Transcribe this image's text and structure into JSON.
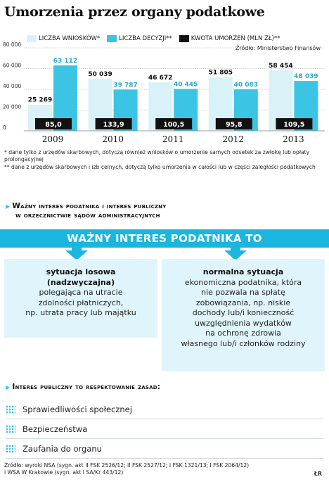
{
  "title": "Umorzenia przez organy podatkowe",
  "legend": [
    {
      "label": "LICZBA WNIOSKÓW*",
      "color": "#d9f2f8"
    },
    {
      "label": "LICZBA DECYZJI**",
      "color": "#3cc4e4"
    },
    {
      "label": "KWOTA UMORZEŃ (MLN ZŁ)**",
      "color": "#111111"
    }
  ],
  "source_top": "Źródło: Ministerstwo Finansów",
  "chart_data": {
    "type": "bar",
    "categories": [
      "2009",
      "2010",
      "2011",
      "2012",
      "2013"
    ],
    "series": [
      {
        "name": "LICZBA WNIOSKÓW*",
        "values": [
          25269,
          50039,
          46672,
          51805,
          58454
        ],
        "labels": [
          "25 269",
          "50 039",
          "46 672",
          "51 805",
          "58 454"
        ]
      },
      {
        "name": "LICZBA DECYZJI**",
        "values": [
          63112,
          39787,
          40445,
          40083,
          48039
        ],
        "labels": [
          "63 112",
          "39 787",
          "40 445",
          "40 083",
          "48 039"
        ]
      },
      {
        "name": "KWOTA UMORZEŃ (MLN ZŁ)**",
        "values": [
          85.0,
          133.9,
          100.5,
          95.8,
          109.5
        ],
        "labels": [
          "85,0",
          "133,9",
          "100,5",
          "95,8",
          "109,5"
        ]
      }
    ],
    "yticks": [
      "80 000",
      "60 000",
      "40 000",
      "20 000",
      "0"
    ],
    "ylim": [
      0,
      80000
    ],
    "colors": {
      "wnioski": "#d9f2f8",
      "decyzje": "#3cc4e4",
      "kwota": "#111111",
      "grid": "#c8c8c8"
    }
  },
  "notes": {
    "n1": "* dane tylko z urzędów skarbowych, dotyczą również wniosków o umorzenie samych odsetek za zwłokę lub opłaty prolongacyjnej",
    "n2": "** dane z urzędów skarbowych i izb celnych, dotyczą tylko umorzenia w całości lub w części zaległości podatkowych"
  },
  "section1": {
    "line1": "Ważny interes podatnika i interes publiczny",
    "line2": "w orzecznictwie sądów administracyjnych"
  },
  "banner": "WAŻNY INTERES PODATNIKA TO",
  "box_left": {
    "head1": "sytuacja losowa",
    "head2": "(nadzwyczajna)",
    "lines": [
      "polegająca na utracie",
      "zdolności płatniczych,",
      "np. utrata pracy lub majątku"
    ]
  },
  "box_right": {
    "head": "normalna sytuacja",
    "lines": [
      "ekonomiczna podatnika, która",
      "nie pozwala na spłatę",
      "zobowiązania, np. niskie",
      "dochody lub/i konieczność",
      "uwzględnienia wydatków",
      "na ochronę zdrowia",
      "własnego lub/i członków rodziny"
    ]
  },
  "section2": "Interes publiczny to respektowanie zasad:",
  "list": [
    "Sprawiedliwości społecznej",
    "Bezpieczeństwa",
    "Zaufania do organu"
  ],
  "source_bottom": {
    "line1": "Źródło: wyroki NSA (sygn. akt II FSK 2526/12; II FSK 2527/12; I FSK 1321/13; I FSK 2064/12)",
    "line2": "i WSA W Krakowie (sygn. akt I SA/Kr 443/12)"
  },
  "signature": "ŁR"
}
